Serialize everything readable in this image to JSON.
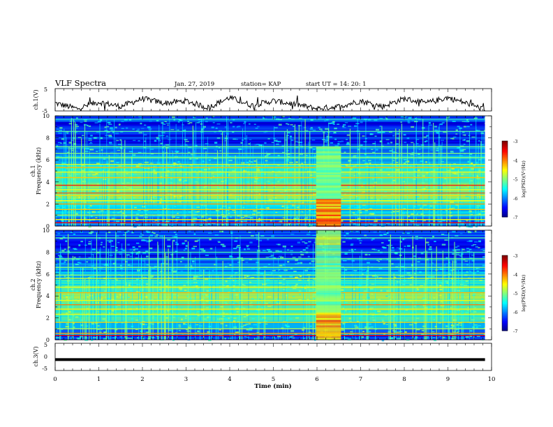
{
  "header": {
    "title": "VLF Spectra",
    "date": "Jan. 27, 2019",
    "station": "station= KAP",
    "start": "start UT =  14: 20: 1"
  },
  "chart_data": [
    {
      "type": "line",
      "panel": "ch1_voltage",
      "ylabel": "ch.1(V)",
      "ylim": [
        -5,
        5
      ],
      "yticks": [
        "5",
        "-5"
      ],
      "x": [
        0,
        0.5,
        1,
        1.5,
        2,
        2.5,
        3,
        3.5,
        4,
        4.5,
        5,
        5.5,
        6,
        6.5,
        7,
        7.5,
        8,
        8.5,
        9,
        9.5,
        9.85
      ],
      "y": [
        -1.5,
        -4.0,
        -1.0,
        -3.0,
        0.5,
        -1.5,
        -0.5,
        -3.5,
        1.0,
        -2.5,
        -0.5,
        -2.0,
        -4.0,
        -3.0,
        -0.5,
        -3.0,
        0.5,
        -1.5,
        1.0,
        -2.0,
        -4.5
      ]
    },
    {
      "type": "heatmap",
      "panel": "ch1_spectrogram",
      "ylabel": "ch.1\nFrequency (kHz)",
      "ylim": [
        0,
        10
      ],
      "yticks": [
        "0",
        "2",
        "4",
        "6",
        "8",
        "10"
      ],
      "xlim": [
        0,
        10
      ],
      "data_end_min": 9.85,
      "colorbar": {
        "label": "log(PSD)(V²/Hz)",
        "range": [
          -7,
          -3
        ],
        "ticks": [
          "-3",
          "-4",
          "-5",
          "-6",
          "-7"
        ]
      }
    },
    {
      "type": "heatmap",
      "panel": "ch2_spectrogram",
      "ylabel": "ch.2\nFrequency (kHz)",
      "ylim": [
        0,
        10
      ],
      "yticks": [
        "0",
        "2",
        "4",
        "6",
        "8",
        "10"
      ],
      "xlim": [
        0,
        10
      ],
      "data_end_min": 9.85,
      "colorbar": {
        "label": "log(PSD)(V²/Hz)",
        "range": [
          -7,
          -3
        ],
        "ticks": [
          "-3",
          "-4",
          "-5",
          "-6",
          "-7"
        ]
      }
    },
    {
      "type": "line",
      "panel": "ch3_voltage",
      "ylabel": "ch.3(V)",
      "ylim": [
        -5,
        5
      ],
      "yticks": [
        "5",
        "0",
        "-5"
      ],
      "x": [
        0,
        9.85
      ],
      "y": [
        -1,
        -1
      ]
    }
  ],
  "xaxis": {
    "label": "Time (min)",
    "ticks": [
      "0",
      "1",
      "2",
      "3",
      "4",
      "5",
      "6",
      "7",
      "8",
      "9",
      "10"
    ]
  },
  "colors": {
    "background": "#00007f",
    "line": "#000000"
  }
}
